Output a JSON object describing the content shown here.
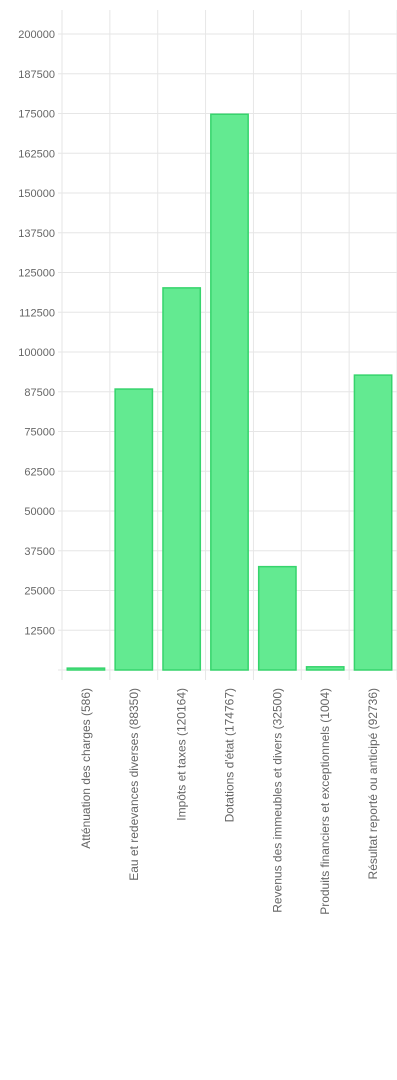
{
  "chart_data": {
    "type": "bar",
    "categories": [
      "Atténuation des charges (586)",
      "Eau et redevances diverses (88350)",
      "Impôts et taxes (120164)",
      "Dotations d'état (174767)",
      "Revenus des immeubles et divers (32500)",
      "Produits financiers et exceptionnels (1004)",
      "Résultat reporté ou anticipé (92736)"
    ],
    "values": [
      586,
      88350,
      120164,
      174767,
      32500,
      1004,
      92736
    ],
    "ylim": [
      0,
      200000
    ],
    "yticks": [
      "200000",
      "187500",
      "175000",
      "162500",
      "150000",
      "137500",
      "125000",
      "112500",
      "100000",
      "87500",
      "75000",
      "62500",
      "50000",
      "37500",
      "25000",
      "12500"
    ],
    "ytick_values": [
      200000,
      187500,
      175000,
      162500,
      150000,
      137500,
      125000,
      112500,
      100000,
      87500,
      75000,
      62500,
      50000,
      37500,
      25000,
      12500
    ],
    "grid": true,
    "legend": "none",
    "colors": {
      "bar_fill": "#63ea91",
      "bar_border": "#36d46c",
      "grid": "#e6e6e6",
      "text": "#666666"
    }
  }
}
